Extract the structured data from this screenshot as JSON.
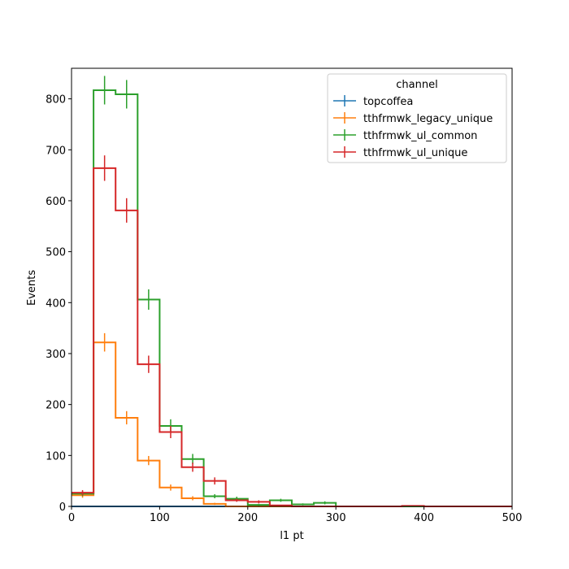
{
  "chart_data": {
    "type": "step-histogram",
    "title": "",
    "xlabel": "l1 pt",
    "ylabel": "Events",
    "xlim": [
      0,
      500
    ],
    "ylim": [
      0,
      860
    ],
    "grid": false,
    "x_ticks": [
      "0",
      "100",
      "200",
      "300",
      "400",
      "500"
    ],
    "y_ticks": [
      "0",
      "100",
      "200",
      "300",
      "400",
      "500",
      "600",
      "700",
      "800"
    ],
    "legend": {
      "title": "channel",
      "placement": "top-right"
    },
    "bin_edges": [
      0,
      25,
      50,
      75,
      100,
      125,
      150,
      175,
      200,
      225,
      250,
      275,
      300,
      325,
      350,
      375,
      400,
      425,
      450,
      475,
      500
    ],
    "series": [
      {
        "name": "topcoffea",
        "color": "#1f77b4",
        "values": [
          0,
          0,
          0,
          0,
          0,
          0,
          0,
          0,
          0,
          0,
          0,
          0,
          0,
          0,
          0,
          0,
          0,
          0,
          0,
          0
        ],
        "errors": [
          0,
          0,
          0,
          0,
          0,
          0,
          0,
          0,
          0,
          0,
          0,
          0,
          0,
          0,
          0,
          0,
          0,
          0,
          0,
          0
        ]
      },
      {
        "name": "tthfrmwk_legacy_unique",
        "color": "#ff7f0e",
        "values": [
          22,
          322,
          174,
          90,
          37,
          16,
          5,
          0,
          0,
          0,
          0,
          0,
          0,
          0,
          0,
          0,
          0,
          0,
          0,
          0
        ],
        "errors": [
          5,
          18,
          13,
          9,
          6,
          4,
          2,
          0,
          0,
          0,
          0,
          0,
          0,
          0,
          0,
          0,
          0,
          0,
          0,
          0
        ]
      },
      {
        "name": "tthfrmwk_ul_common",
        "color": "#2ca02c",
        "values": [
          25,
          817,
          809,
          406,
          158,
          93,
          20,
          15,
          3,
          12,
          4,
          7,
          0,
          0,
          0,
          0,
          0,
          0,
          0,
          0
        ],
        "errors": [
          5,
          28,
          28,
          20,
          13,
          10,
          4,
          4,
          2,
          3,
          2,
          3,
          0,
          0,
          0,
          0,
          0,
          0,
          0,
          0
        ]
      },
      {
        "name": "tthfrmwk_ul_unique",
        "color": "#d62728",
        "values": [
          27,
          664,
          581,
          279,
          146,
          77,
          50,
          12,
          9,
          2,
          0,
          0,
          0,
          0,
          0,
          1,
          0,
          0,
          0,
          0
        ],
        "errors": [
          5,
          25,
          24,
          17,
          12,
          9,
          7,
          3,
          3,
          1,
          0,
          0,
          0,
          0,
          0,
          1,
          0,
          0,
          0,
          0
        ]
      }
    ]
  }
}
